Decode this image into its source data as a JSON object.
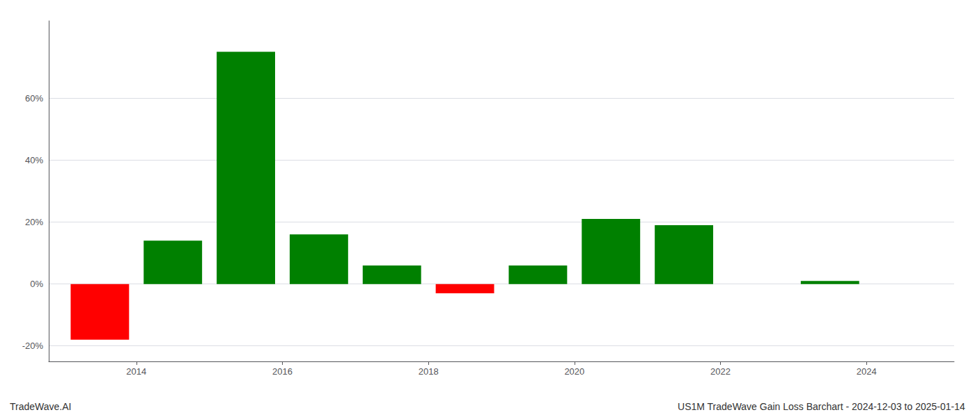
{
  "chart_data": {
    "type": "bar",
    "x": [
      2013.5,
      2014.5,
      2015.5,
      2016.5,
      2017.5,
      2018.5,
      2019.5,
      2020.5,
      2021.5,
      2023.5
    ],
    "values": [
      -18.0,
      14.0,
      75.0,
      16.0,
      6.0,
      -3.0,
      6.0,
      21.0,
      19.0,
      1.0
    ],
    "colors": [
      "#ff0000",
      "#008000",
      "#008000",
      "#008000",
      "#008000",
      "#ff0000",
      "#008000",
      "#008000",
      "#008000",
      "#008000"
    ],
    "xlim": [
      2012.8,
      2025.2
    ],
    "xticks": [
      2014,
      2016,
      2018,
      2020,
      2022,
      2024
    ],
    "ylim": [
      -25,
      85
    ],
    "yticks": [
      {
        "value": -20,
        "label": "-20%"
      },
      {
        "value": 0,
        "label": "0%"
      },
      {
        "value": 20,
        "label": "20%"
      },
      {
        "value": 40,
        "label": "40%"
      },
      {
        "value": 60,
        "label": "60%"
      }
    ],
    "grid": true,
    "annotations": [
      "TradeWave.AI",
      "US1M TradeWave Gain Loss Barchart - 2024-12-03 to 2025-01-14"
    ]
  }
}
